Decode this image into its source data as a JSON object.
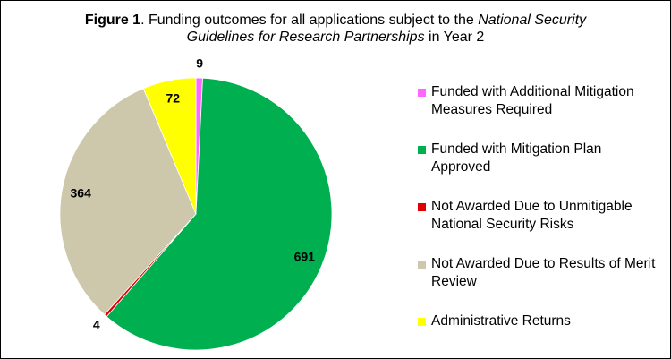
{
  "chart_data": {
    "type": "pie",
    "title_lines": [
      [
        {
          "text": "Figure 1",
          "style": "bold"
        },
        {
          "text": ". Funding outcomes for all applications subject to the ",
          "style": "normal"
        },
        {
          "text": "National Security",
          "style": "italic"
        }
      ],
      [
        {
          "text": "Guidelines for Research Partnerships",
          "style": "italic"
        },
        {
          "text": " in Year 2",
          "style": "normal"
        }
      ]
    ],
    "categories": [
      "Funded with Additional Mitigation Measures Required",
      "Funded with Mitigation Plan Approved",
      "Not Awarded Due to Unmitigable National Security Risks",
      "Not Awarded Due to Results of Merit Review",
      "Administrative Returns"
    ],
    "values": [
      9,
      691,
      4,
      364,
      72
    ],
    "colors": [
      "#ff66ff",
      "#00b050",
      "#e00000",
      "#cdc7ab",
      "#ffff00"
    ],
    "legend": "right"
  }
}
